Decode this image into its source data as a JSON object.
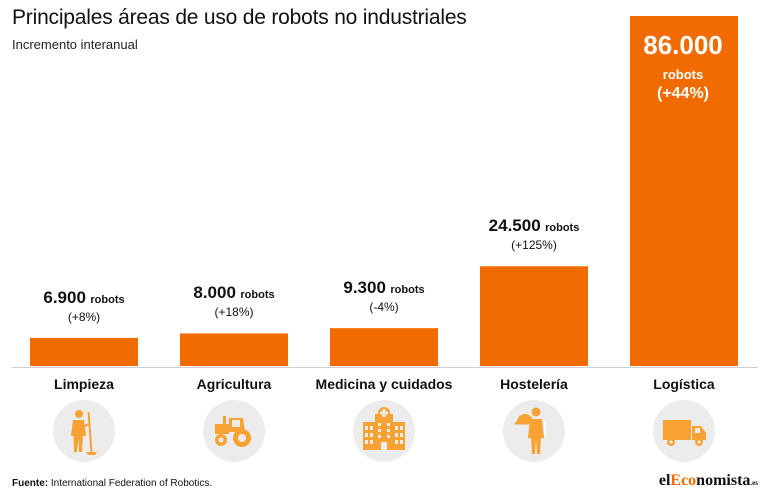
{
  "header": {
    "title": "Principales áreas de uso de robots no industriales",
    "subtitle": "Incremento interanual"
  },
  "colors": {
    "accent": "#f26b00",
    "icon": "#f7a233",
    "circle": "#ececec"
  },
  "chart_data": {
    "type": "bar",
    "title": "Principales áreas de uso de robots no industriales",
    "subtitle": "Incremento interanual",
    "categories": [
      "Limpieza",
      "Agricultura",
      "Medicina y cuidados",
      "Hostelería",
      "Logística"
    ],
    "values": [
      6900,
      8000,
      9300,
      24500,
      86000
    ],
    "value_labels": [
      "6.900",
      "8.000",
      "9.300",
      "24.500",
      "86.000"
    ],
    "unit_label": "robots",
    "change_labels": [
      "(+8%)",
      "(+18%)",
      "(-4%)",
      "(+125%)",
      "(+44%)"
    ],
    "icons": [
      "cleaner-icon",
      "tractor-icon",
      "hospital-icon",
      "waiter-icon",
      "truck-icon"
    ],
    "ylim": [
      0,
      86000
    ],
    "grid": false,
    "legend": "none"
  },
  "footer": {
    "source_label": "Fuente:",
    "source_text": " International Federation of Robotics.",
    "logo_pre": "el",
    "logo_accent": "Eco",
    "logo_post": "nomista",
    "logo_suffix": ".es"
  }
}
